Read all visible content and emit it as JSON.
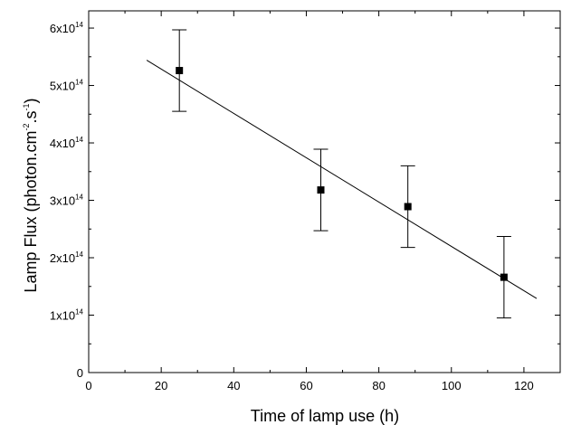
{
  "chart_data": {
    "type": "scatter",
    "title": "",
    "xlabel": "Time of lamp use (h)",
    "ylabel": {
      "prefix": "Lamp Flux (photon.cm",
      "sup1": "-2",
      "middle": ".s",
      "sup2": "-1",
      "suffix": ")"
    },
    "xlim": [
      0,
      130
    ],
    "ylim": [
      0,
      6.3
    ],
    "y_multiplier_label": {
      "base": "x10",
      "exp": "14"
    },
    "x_ticks": [
      0,
      20,
      40,
      60,
      80,
      100,
      120
    ],
    "x_tick_labels": [
      "0",
      "20",
      "40",
      "60",
      "80",
      "100",
      "120"
    ],
    "y_ticks": [
      0,
      1,
      2,
      3,
      4,
      5,
      6
    ],
    "y_tick_labels": [
      "0",
      "1",
      "2",
      "3",
      "4",
      "5",
      "6"
    ],
    "series": [
      {
        "marker": "square",
        "color": "#000000",
        "points": [
          {
            "x": 25,
            "y": 5.26,
            "err_low": 4.55,
            "err_high": 5.97
          },
          {
            "x": 64,
            "y": 3.18,
            "err_low": 2.47,
            "err_high": 3.89
          },
          {
            "x": 88,
            "y": 2.89,
            "err_low": 2.18,
            "err_high": 3.6
          },
          {
            "x": 114.5,
            "y": 1.66,
            "err_low": 0.95,
            "err_high": 2.37
          }
        ]
      }
    ],
    "fit_line": {
      "x": [
        16,
        123.5
      ],
      "y": [
        5.44,
        1.29
      ],
      "color": "#000000"
    },
    "grid": false,
    "legend": "none"
  }
}
